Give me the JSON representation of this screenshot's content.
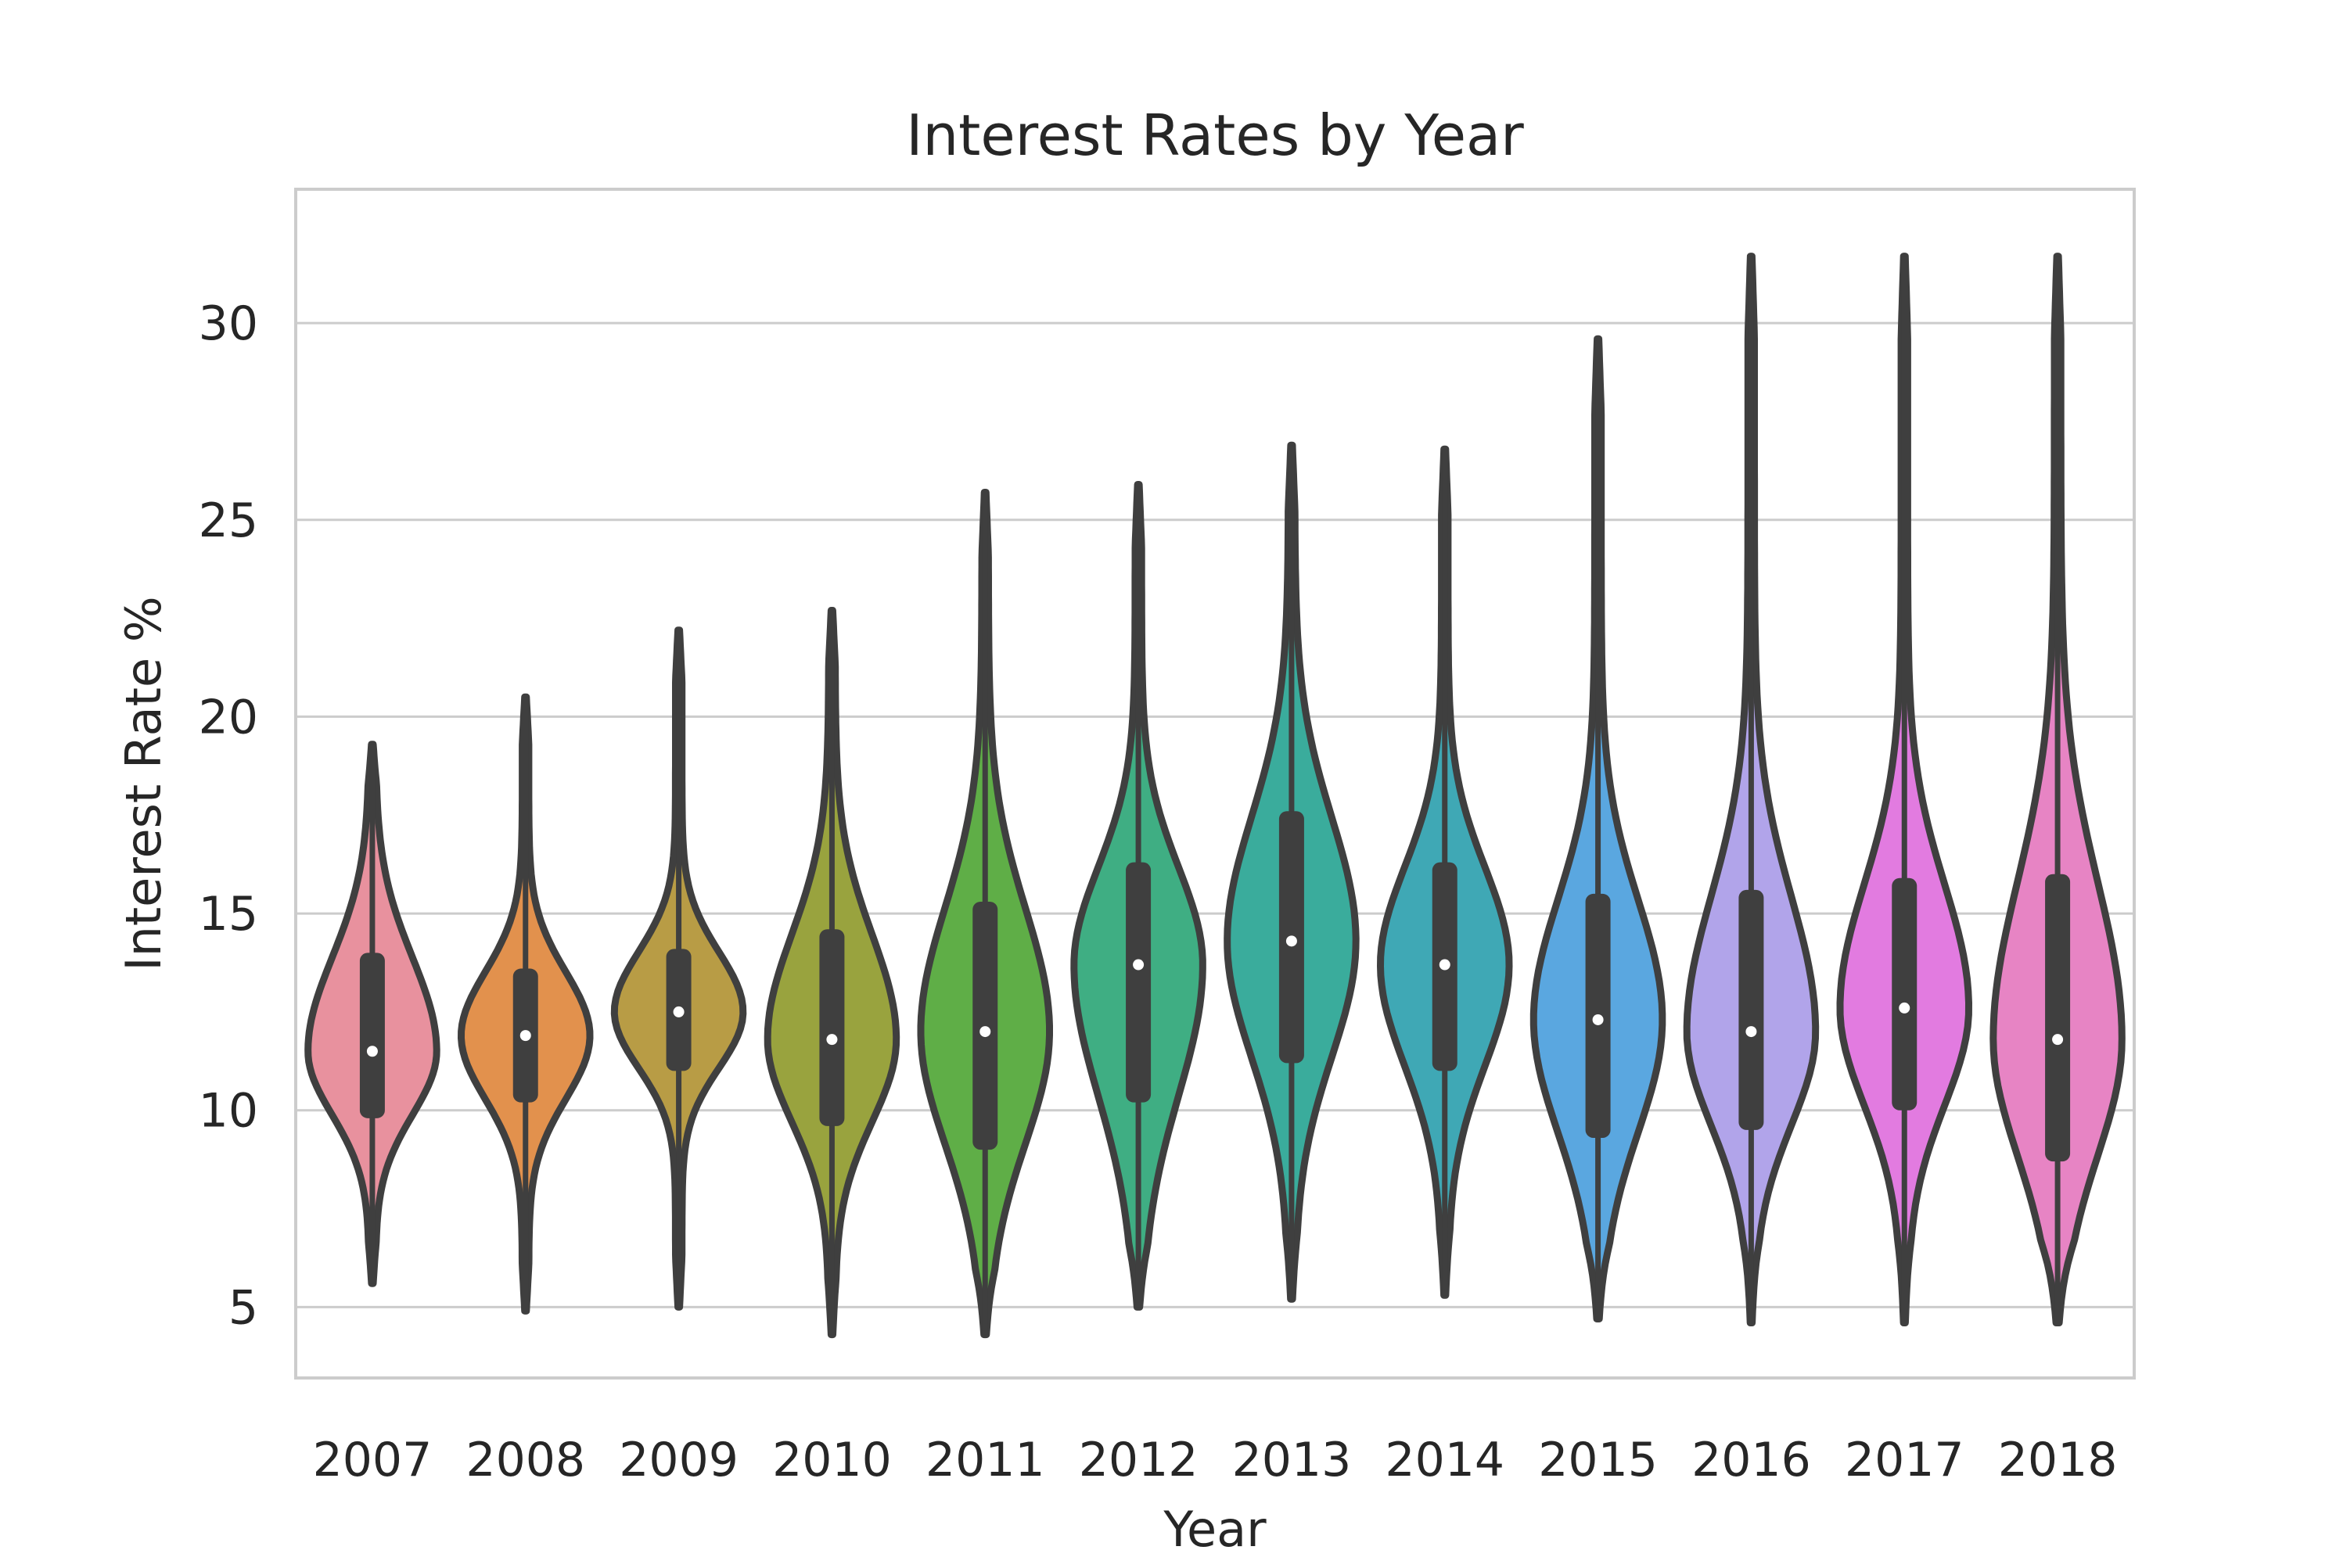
{
  "chart_data": {
    "type": "violin",
    "title": "Interest Rates by Year",
    "xlabel": "Year",
    "ylabel": "Interest Rate %",
    "ylim": [
      3.2,
      33.4
    ],
    "yticks": [
      5,
      10,
      15,
      20,
      25,
      30
    ],
    "grid": "horizontal",
    "categories": [
      "2007",
      "2008",
      "2009",
      "2010",
      "2011",
      "2012",
      "2013",
      "2014",
      "2015",
      "2016",
      "2017",
      "2018"
    ],
    "colors": [
      "#e8919e",
      "#e2914d",
      "#b89c45",
      "#99a33e",
      "#5fae47",
      "#3fae83",
      "#3aac9c",
      "#3fa8b5",
      "#5aa7e0",
      "#b1a4ea",
      "#e27be0",
      "#e784c4"
    ],
    "series": [
      {
        "min": 5.6,
        "q1": 9.8,
        "median": 11.5,
        "q3": 14.0,
        "max": 19.3
      },
      {
        "min": 4.9,
        "q1": 10.2,
        "median": 11.9,
        "q3": 13.6,
        "max": 20.5
      },
      {
        "min": 5.0,
        "q1": 11.0,
        "median": 12.5,
        "q3": 14.1,
        "max": 22.2
      },
      {
        "min": 4.3,
        "q1": 9.6,
        "median": 11.8,
        "q3": 14.6,
        "max": 22.7
      },
      {
        "min": 4.3,
        "q1": 9.0,
        "median": 12.0,
        "q3": 15.3,
        "max": 25.7
      },
      {
        "min": 5.0,
        "q1": 10.2,
        "median": 13.7,
        "q3": 16.3,
        "max": 25.9
      },
      {
        "min": 5.2,
        "q1": 11.2,
        "median": 14.3,
        "q3": 17.6,
        "max": 26.9
      },
      {
        "min": 5.3,
        "q1": 11.0,
        "median": 13.7,
        "q3": 16.3,
        "max": 26.8
      },
      {
        "min": 4.7,
        "q1": 9.3,
        "median": 12.3,
        "q3": 15.5,
        "max": 29.6
      },
      {
        "min": 4.6,
        "q1": 9.5,
        "median": 12.0,
        "q3": 15.6,
        "max": 31.7
      },
      {
        "min": 4.6,
        "q1": 10.0,
        "median": 12.6,
        "q3": 15.9,
        "max": 31.7
      },
      {
        "min": 4.6,
        "q1": 8.7,
        "median": 11.8,
        "q3": 16.0,
        "max": 31.7
      }
    ]
  }
}
